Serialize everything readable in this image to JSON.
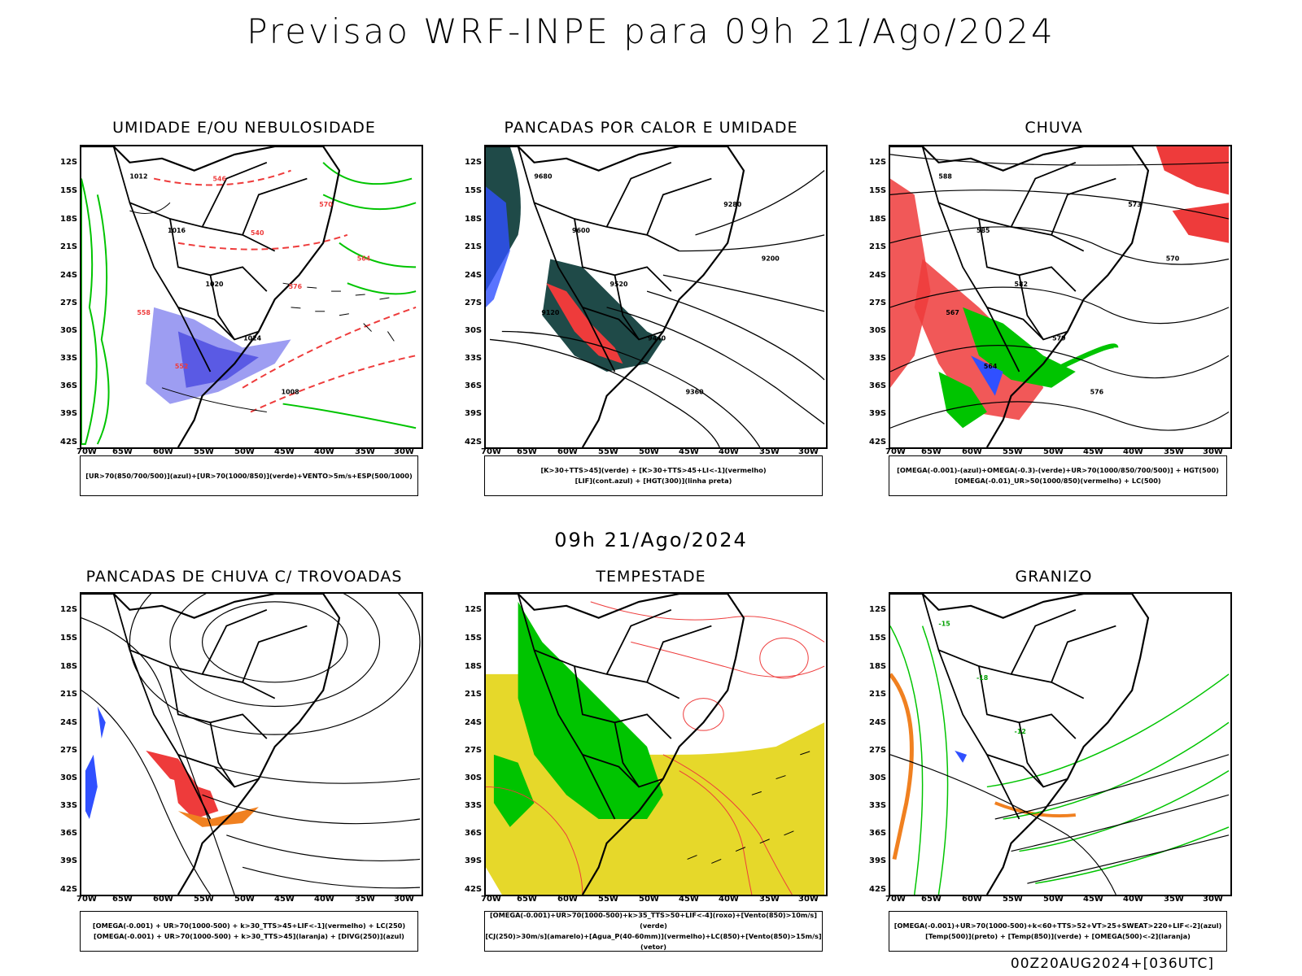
{
  "header": {
    "title": "Previsao WRF-INPE  para 09h 21/Ago/2024"
  },
  "subtitle": "09h 21/Ago/2024",
  "footer": "00Z20AUG2024+[036UTC]",
  "lat_labels": [
    "12S",
    "15S",
    "18S",
    "21S",
    "24S",
    "27S",
    "30S",
    "33S",
    "36S",
    "39S",
    "42S"
  ],
  "lon_labels": [
    "70W",
    "65W",
    "60W",
    "55W",
    "50W",
    "45W",
    "40W",
    "35W",
    "30W"
  ],
  "panels": [
    {
      "title": "UMIDADE E/OU NEBULOSIDADE",
      "legend": [
        "[UR>70(850/700/500)](azul)+[UR>70(1000/850)](verde)+VENTO>5m/s+ESP(500/1000)"
      ],
      "contour_labels": [
        "1012",
        "1016",
        "1020",
        "1024",
        "1008",
        "570",
        "564",
        "558",
        "552",
        "546",
        "540",
        "576"
      ]
    },
    {
      "title": "PANCADAS POR CALOR E UMIDADE",
      "legend": [
        "[K>30+TTS>45](verde) + [K>30+TTS>45+LI<-1](vermelho)",
        "[LIF](cont.azul) + [HGT(300)](linha preta)"
      ],
      "contour_labels": [
        "9680",
        "9600",
        "9520",
        "9440",
        "9360",
        "9280",
        "9200",
        "9120"
      ]
    },
    {
      "title": "CHUVA",
      "legend": [
        "[OMEGA(-0.001)-(azul)+OMEGA(-0.3)-(verde)+UR>70(1000/850/700/500)] + HGT(500)",
        "[OMEGA(-0.01)_UR>50(1000/850)(vermelho) + LC(500)"
      ],
      "contour_labels": [
        "588",
        "585",
        "582",
        "579",
        "576",
        "573",
        "570",
        "567",
        "564"
      ]
    },
    {
      "title": "PANCADAS DE CHUVA C/ TROVOADAS",
      "legend": [
        "[OMEGA(-0.001) + UR>70(1000-500) + k>30_TTS>45+LIF<-1](vermelho) + LC(250)",
        "[OMEGA(-0.001) + UR>70(1000-500) + k>30_TTS>45](laranja) + [DIVG(250)](azul)"
      ],
      "contour_labels": []
    },
    {
      "title": "TEMPESTADE",
      "legend": [
        "[OMEGA(-0.001)+UR>70(1000-500)+k>35_TTS>50+LIF<-4](roxo)+[Vento(850)>10m/s](verde)",
        "[CJ(250)>30m/s](amarelo)+[Agua_P(40-60mm)](vermelho)+LC(850)+[Vento(850)>15m/s](vetor)"
      ],
      "contour_labels": []
    },
    {
      "title": "GRANIZO",
      "legend": [
        "[OMEGA(-0.001)+UR>70(1000-500)+k<60+TTS>52+VT>25+SWEAT>220+LIF<-2](azul)",
        "[Temp(500)](preto) + [Temp(850)](verde) + [OMEGA(500)<-2](laranja)"
      ],
      "contour_labels": [
        "-15",
        "-18",
        "-12"
      ]
    }
  ],
  "colors": {
    "red": "#ee3b3b",
    "green": "#00c400",
    "blue": "#3050ff",
    "orange": "#f08020",
    "yellow": "#e6d82a",
    "teal": "#1f4a48",
    "lavender": "#8c8cf0"
  }
}
